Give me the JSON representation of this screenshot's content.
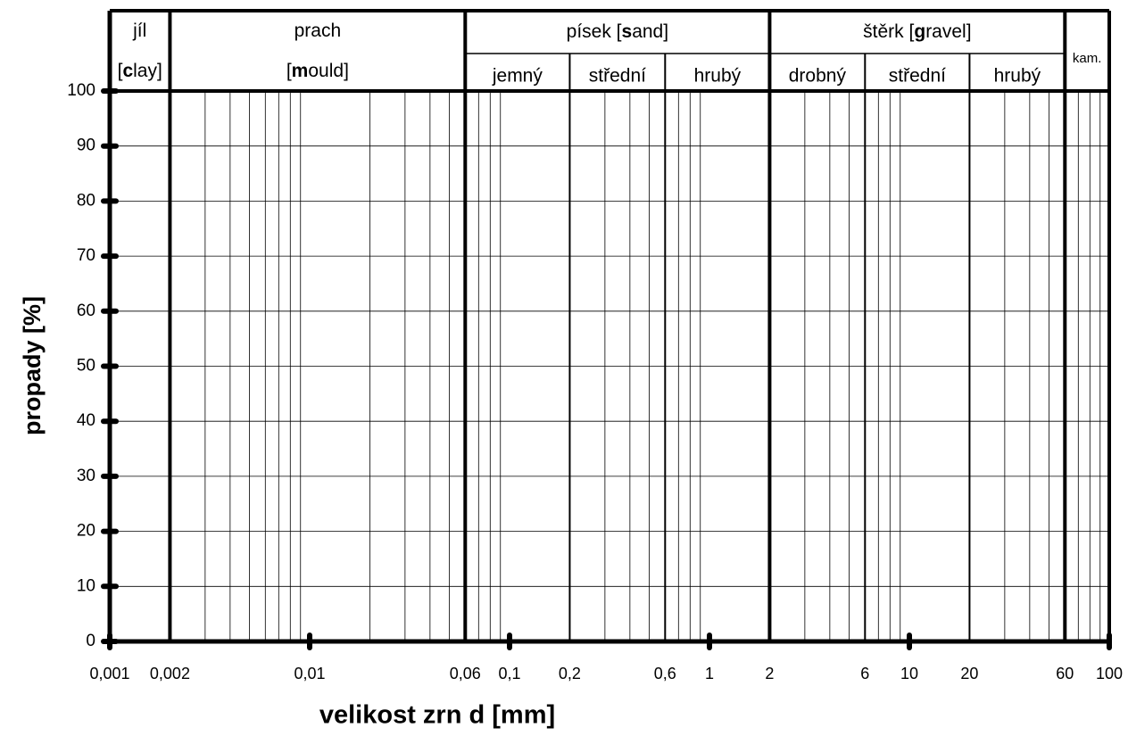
{
  "chart_data": {
    "type": "line",
    "xlabel": "velikost zrn d [mm]",
    "ylabel": "propady [%]",
    "xlog": true,
    "grid": true,
    "xlim": [
      0.001,
      100
    ],
    "ylim": [
      0,
      100
    ],
    "yticks": [
      0,
      10,
      20,
      30,
      40,
      50,
      60,
      70,
      80,
      90,
      100
    ],
    "xticks": [
      {
        "value": 0.001,
        "label": "0,001"
      },
      {
        "value": 0.002,
        "label": "0,002"
      },
      {
        "value": 0.01,
        "label": "0,01"
      },
      {
        "value": 0.06,
        "label": "0,06"
      },
      {
        "value": 0.1,
        "label": "0,1"
      },
      {
        "value": 0.2,
        "label": "0,2"
      },
      {
        "value": 0.6,
        "label": "0,6"
      },
      1,
      2,
      6,
      10,
      20,
      60,
      100
    ],
    "xminor": [
      0.002,
      0.003,
      0.004,
      0.005,
      0.006,
      0.007,
      0.008,
      0.009,
      0.02,
      0.03,
      0.04,
      0.05,
      0.06,
      0.07,
      0.08,
      0.09,
      0.2,
      0.3,
      0.4,
      0.5,
      0.6,
      0.7,
      0.8,
      0.9,
      2,
      3,
      4,
      5,
      6,
      7,
      8,
      9,
      20,
      30,
      40,
      50,
      60,
      70,
      80,
      90
    ],
    "zones": [
      {
        "lines": [
          [
            "jíl"
          ],
          [
            "[",
            "c",
            "lay]"
          ]
        ],
        "from": 0.001,
        "to": 0.002
      },
      {
        "lines": [
          [
            "prach"
          ],
          [
            "[",
            "m",
            "ould]"
          ]
        ],
        "from": 0.002,
        "to": 0.06
      },
      {
        "lines": [
          [
            "písek [",
            "s",
            "and]"
          ]
        ],
        "from": 0.06,
        "to": 2,
        "subzones": [
          {
            "label": "jemný",
            "from": 0.06,
            "to": 0.2
          },
          {
            "label": "střední",
            "from": 0.2,
            "to": 0.6
          },
          {
            "label": "hrubý",
            "from": 0.6,
            "to": 2
          }
        ]
      },
      {
        "lines": [
          [
            "štěrk [",
            "g",
            "ravel]"
          ]
        ],
        "from": 2,
        "to": 60,
        "subzones": [
          {
            "label": "drobný",
            "from": 2,
            "to": 6
          },
          {
            "label": "střední",
            "from": 6,
            "to": 20
          },
          {
            "label": "hrubý",
            "from": 20,
            "to": 60
          }
        ]
      },
      {
        "lines": [
          [
            "kam."
          ]
        ],
        "from": 60,
        "to": 100
      }
    ]
  }
}
